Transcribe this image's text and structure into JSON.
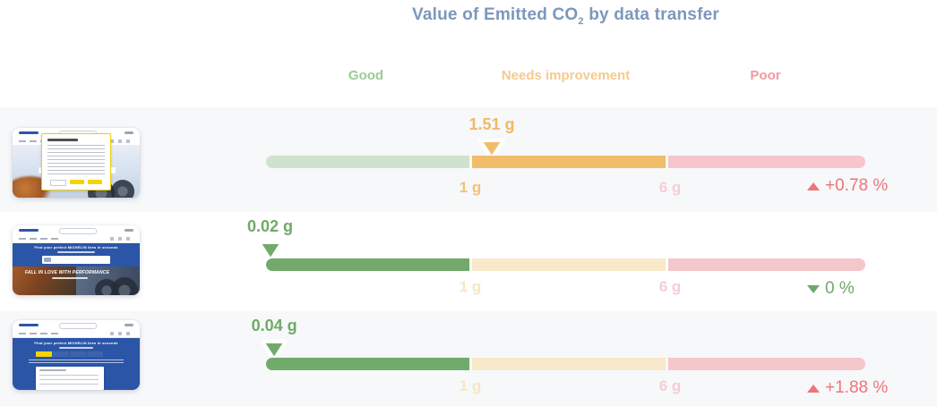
{
  "ui": {
    "title": {
      "prefix": "Value of Emitted CO",
      "sub": "2",
      "suffix": " by data transfer"
    },
    "zone_headers": [
      {
        "label": "Good"
      },
      {
        "label": "Needs improvement"
      },
      {
        "label": "Poor"
      }
    ],
    "threshold_labels": {
      "low": "1 g",
      "high": "6 g"
    },
    "thumbnails": [
      {},
      {
        "heading": "Find your perfect MICHELIN tires in seconds",
        "slogan": "FALL IN LOVE WITH PERFORMANCE"
      },
      {
        "heading": "Find your perfect MICHELIN tires in seconds"
      }
    ],
    "colors": {
      "title": "#7b98bb",
      "good": "#72aa6c",
      "good_pale": "#cfe3cc",
      "good_header": "#9bcb97",
      "needs": "#f0bd6b",
      "needs_pale": "#f9e9cb",
      "needs_header": "#f6ca8c",
      "poor_pale": "#f5c6cb",
      "poor_header": "#f29a9f",
      "trend_up_red": "#ee747c",
      "trend_down_green": "#6fa76b",
      "row_alt_background": "#f7f8fa"
    }
  },
  "chart_data": {
    "type": "bar",
    "orientation": "horizontal",
    "title": "Value of Emitted CO2 by data transfer",
    "unit": "g",
    "zones": [
      {
        "label": "Good",
        "range": [
          0,
          1
        ]
      },
      {
        "label": "Needs improvement",
        "range": [
          1,
          6
        ]
      },
      {
        "label": "Poor",
        "range": [
          6,
          null
        ]
      }
    ],
    "threshold_ticks": [
      "1 g",
      "6 g"
    ],
    "rows": [
      {
        "value": 1.51,
        "value_label": "1.51 g",
        "zone": "Needs improvement",
        "change": "+0.78 %",
        "change_direction": "up"
      },
      {
        "value": 0.02,
        "value_label": "0.02 g",
        "zone": "Good",
        "change": "0 %",
        "change_direction": "down"
      },
      {
        "value": 0.04,
        "value_label": "0.04 g",
        "zone": "Good",
        "change": "+1.88 %",
        "change_direction": "up"
      }
    ]
  }
}
